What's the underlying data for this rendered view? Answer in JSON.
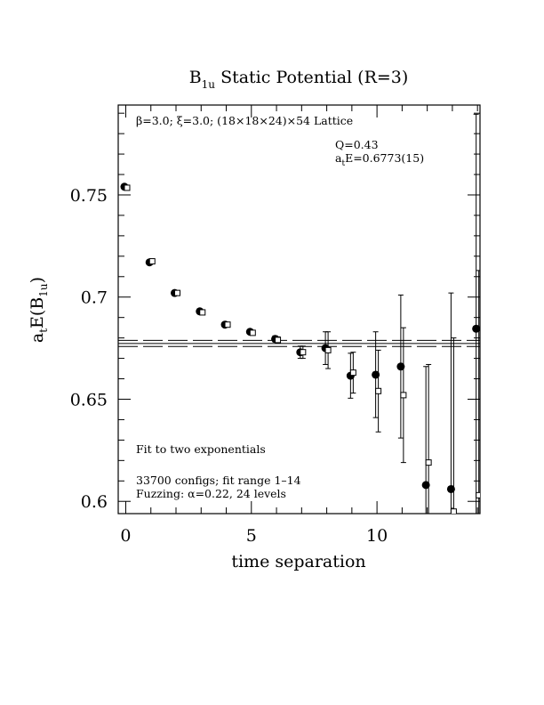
{
  "chart_data": {
    "type": "scatter",
    "title_main": "B",
    "title_sub": "1u",
    "title_rest": " Static Potential (R=3)",
    "xlabel": "time separation",
    "ylabel_parts": {
      "a": "a",
      "t": "t",
      "e": "E(B",
      "sub": "1u",
      "close": ")"
    },
    "xlim": [
      -0.3,
      14.1
    ],
    "ylim": [
      0.594,
      0.794
    ],
    "xticks": [
      0,
      5,
      10
    ],
    "xtick_labels": [
      "0",
      "5",
      "10"
    ],
    "yticks": [
      0.6,
      0.65,
      0.7,
      0.75
    ],
    "ytick_labels": [
      "0.6",
      "0.65",
      "0.7",
      "0.75"
    ],
    "annotations": {
      "lattice": "β=3.0; ξ=3.0; (18×18×24)×54 Lattice",
      "q": "Q=0.43",
      "ate_a": "a",
      "ate_t": "t",
      "ate_rest": "E=0.6773(15)",
      "fit": "Fit to two exponentials",
      "configs": "33700 configs; fit range 1–14",
      "fuzzing": "Fuzzing: α=0.22, 24 levels"
    },
    "fit_band": {
      "center": 0.6773,
      "error": 0.0015
    },
    "series": [
      {
        "marker": "filled-circle",
        "points": [
          {
            "x": 0,
            "y": 0.754,
            "err": 0
          },
          {
            "x": 1,
            "y": 0.717,
            "err": 0
          },
          {
            "x": 2,
            "y": 0.702,
            "err": 0
          },
          {
            "x": 3,
            "y": 0.693,
            "err": 0
          },
          {
            "x": 4,
            "y": 0.6865,
            "err": 0
          },
          {
            "x": 5,
            "y": 0.683,
            "err": 0
          },
          {
            "x": 6,
            "y": 0.6795,
            "err": 0.0015
          },
          {
            "x": 7,
            "y": 0.673,
            "err": 0.003
          },
          {
            "x": 8,
            "y": 0.675,
            "err": 0.008
          },
          {
            "x": 9,
            "y": 0.6615,
            "err": 0.011
          },
          {
            "x": 10,
            "y": 0.662,
            "err": 0.021
          },
          {
            "x": 11,
            "y": 0.666,
            "err": 0.035
          },
          {
            "x": 12,
            "y": 0.608,
            "err": 0.058
          },
          {
            "x": 13,
            "y": 0.606,
            "err": 0.096
          },
          {
            "x": 14,
            "y": 0.6845,
            "err": 0.105
          }
        ]
      },
      {
        "marker": "open-square",
        "points": [
          {
            "x": 0,
            "y": 0.7535,
            "err": 0
          },
          {
            "x": 1,
            "y": 0.7175,
            "err": 0
          },
          {
            "x": 2,
            "y": 0.702,
            "err": 0
          },
          {
            "x": 3,
            "y": 0.6925,
            "err": 0
          },
          {
            "x": 4,
            "y": 0.6865,
            "err": 0
          },
          {
            "x": 5,
            "y": 0.6825,
            "err": 0
          },
          {
            "x": 6,
            "y": 0.679,
            "err": 0.0015
          },
          {
            "x": 7,
            "y": 0.673,
            "err": 0.003
          },
          {
            "x": 8,
            "y": 0.674,
            "err": 0.009
          },
          {
            "x": 9,
            "y": 0.663,
            "err": 0.01
          },
          {
            "x": 10,
            "y": 0.654,
            "err": 0.02
          },
          {
            "x": 11,
            "y": 0.652,
            "err": 0.033
          },
          {
            "x": 12,
            "y": 0.619,
            "err": 0.048
          },
          {
            "x": 13,
            "y": 0.595,
            "err": 0.085
          },
          {
            "x": 14,
            "y": 0.603,
            "err": 0.11
          }
        ]
      }
    ]
  }
}
